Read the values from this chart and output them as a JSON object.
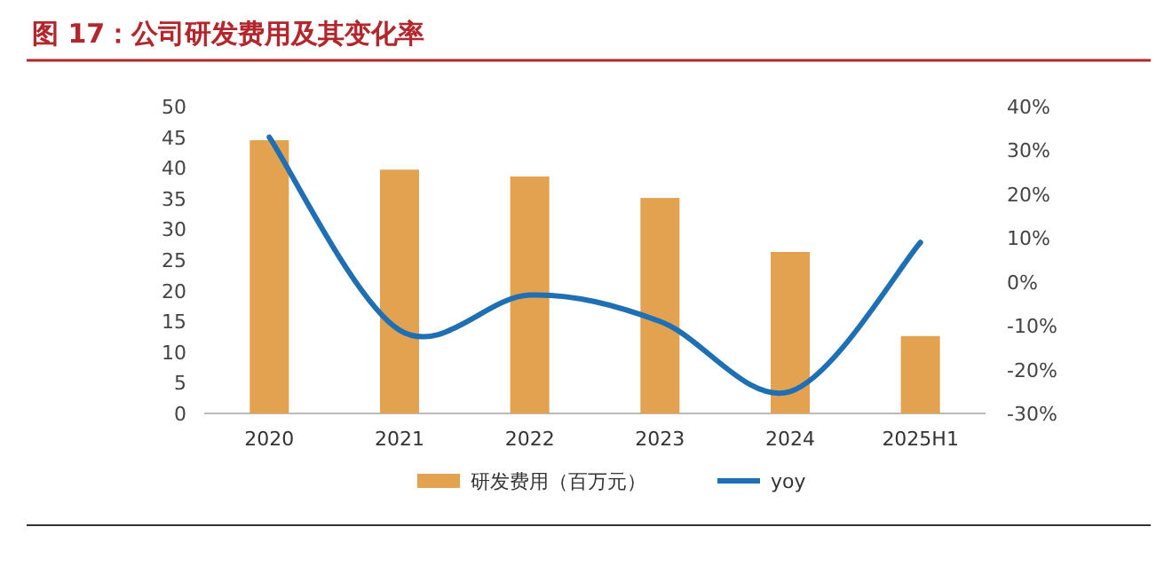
{
  "chart_data": {
    "type": "bar",
    "title": "图 17：公司研发费用及其变化率",
    "categories": [
      "2020",
      "2021",
      "2022",
      "2023",
      "2024",
      "2025H1"
    ],
    "series": [
      {
        "name": "研发费用（百万元）",
        "color": "#e2a24f",
        "values": [
          44.5,
          39.7,
          38.6,
          35.1,
          26.3,
          12.6
        ]
      },
      {
        "name": "yoy",
        "type": "line",
        "axis": "y2",
        "color": "#1f6fb4",
        "line_style": "solid",
        "values": [
          33,
          -11,
          -3,
          -9,
          -25,
          9
        ]
      }
    ],
    "ylim": [
      0,
      50
    ],
    "yticks": [
      0,
      5,
      10,
      15,
      20,
      25,
      30,
      35,
      40,
      45,
      50
    ],
    "y2lim": [
      -30,
      40
    ],
    "y2ticks": [
      {
        "value": -30,
        "label": "-30%"
      },
      {
        "value": -20,
        "label": "-20%"
      },
      {
        "value": -10,
        "label": "-10%"
      },
      {
        "value": 0,
        "label": "0%"
      },
      {
        "value": 10,
        "label": "10%"
      },
      {
        "value": 20,
        "label": "20%"
      },
      {
        "value": 30,
        "label": "30%"
      },
      {
        "value": 40,
        "label": "40%"
      }
    ],
    "legend": "bottom"
  }
}
